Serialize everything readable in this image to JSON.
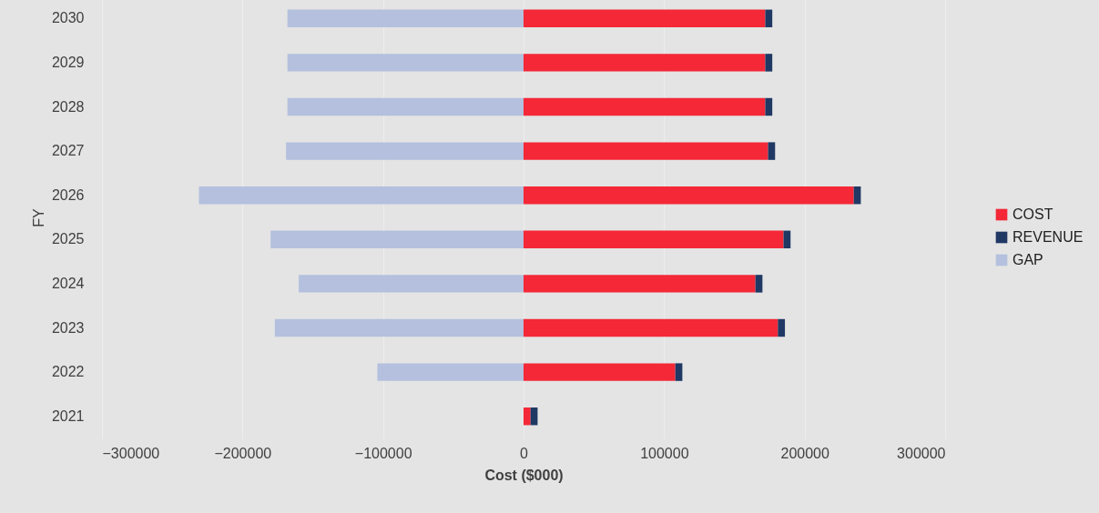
{
  "chart_data": {
    "type": "bar",
    "orientation": "horizontal",
    "stacked": true,
    "xlabel": "Cost ($000)",
    "ylabel": "FY",
    "categories": [
      "2030",
      "2029",
      "2028",
      "2027",
      "2026",
      "2025",
      "2024",
      "2023",
      "2022",
      "2021"
    ],
    "series": [
      {
        "name": "COST",
        "color": "#f42837",
        "values": [
          172000,
          172000,
          172000,
          174000,
          235000,
          185000,
          165000,
          181000,
          108000,
          5000
        ]
      },
      {
        "name": "REVENUE",
        "color": "#203864",
        "values": [
          5000,
          5000,
          5000,
          5000,
          5000,
          5000,
          5000,
          5000,
          5000,
          5000
        ]
      },
      {
        "name": "GAP",
        "color": "#b4c0de",
        "values": [
          -168000,
          -168000,
          -168000,
          -169000,
          -231000,
          -180000,
          -160000,
          -177000,
          -104000,
          0
        ]
      }
    ],
    "xlim": [
      -300000,
      300000
    ],
    "xticks": [
      -300000,
      -200000,
      -100000,
      0,
      100000,
      200000,
      300000
    ],
    "grid": "x",
    "legend": "right"
  }
}
